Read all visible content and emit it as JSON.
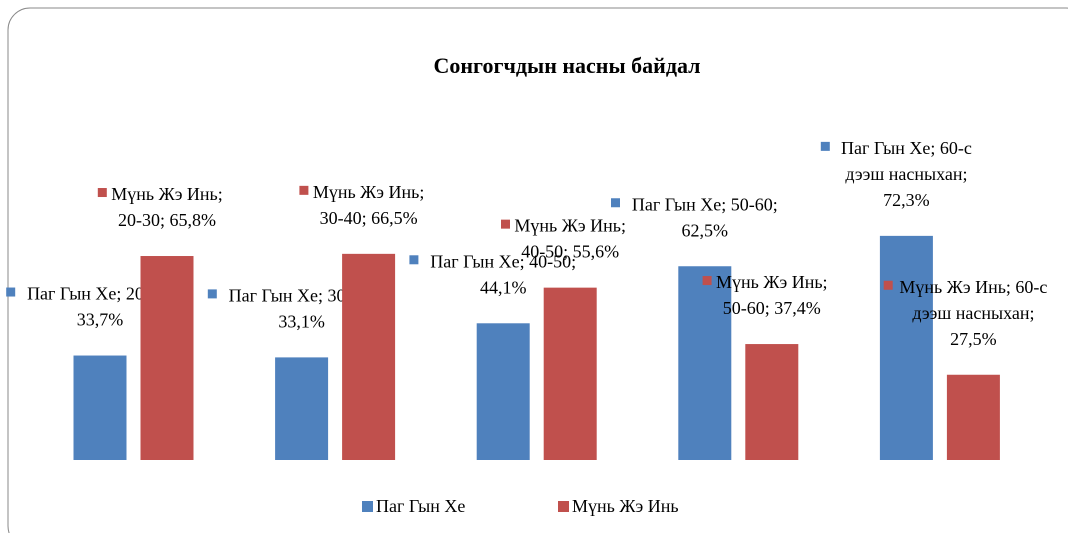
{
  "chart_data": {
    "type": "bar",
    "title": "Сонгогчдын насны байдал",
    "categories": [
      "20-30",
      "30-40",
      "40-50",
      "50-60",
      "60-с дээш насныхан"
    ],
    "series": [
      {
        "name": "Паг Гын Хе",
        "color": "#4f81bd",
        "values": [
          33.7,
          33.1,
          44.1,
          62.5,
          72.3
        ],
        "value_labels": [
          "Паг Гын Хе; 20-30; 33,7%",
          "Паг Гын Хе; 30-40; 33,1%",
          "Паг Гын Хе; 40-50; 44,1%",
          "Паг Гын Хе; 50-60; 62,5%",
          "Паг Гын Хе; 60-с дээш насныхан; 72,3%"
        ]
      },
      {
        "name": "Мүнь Жэ Инь",
        "color": "#c0504d",
        "values": [
          65.8,
          66.5,
          55.6,
          37.4,
          27.5
        ],
        "value_labels": [
          "Мүнь Жэ Инь; 20-30; 65,8%",
          "Мүнь Жэ Инь; 30-40; 66,5%",
          "Мүнь Жэ Инь; 40-50; 55,6%",
          "Мүнь Жэ Инь; 50-60; 37,4%",
          "Мүнь Жэ Инь; 60-с дээш насныхан; 27,5%"
        ]
      }
    ],
    "ylim": [
      0,
      80
    ],
    "legend": "bottom"
  }
}
